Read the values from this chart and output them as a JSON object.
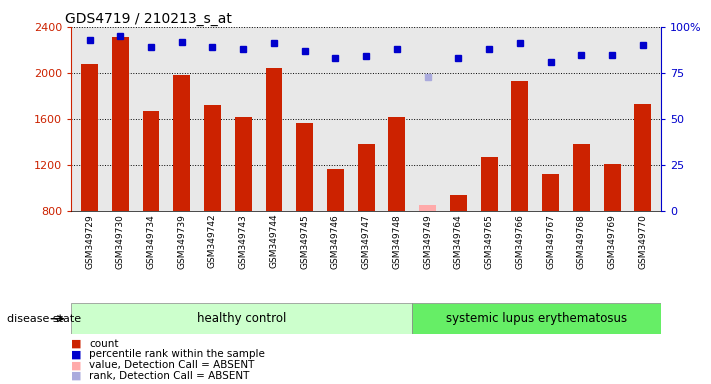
{
  "title": "GDS4719 / 210213_s_at",
  "samples": [
    "GSM349729",
    "GSM349730",
    "GSM349734",
    "GSM349739",
    "GSM349742",
    "GSM349743",
    "GSM349744",
    "GSM349745",
    "GSM349746",
    "GSM349747",
    "GSM349748",
    "GSM349749",
    "GSM349764",
    "GSM349765",
    "GSM349766",
    "GSM349767",
    "GSM349768",
    "GSM349769",
    "GSM349770"
  ],
  "bar_values": [
    2080,
    2310,
    1670,
    1980,
    1720,
    1620,
    2040,
    1565,
    1165,
    1380,
    1620,
    null,
    940,
    1270,
    1930,
    1120,
    1380,
    1210,
    1730
  ],
  "absent_bar_values": [
    null,
    null,
    null,
    null,
    null,
    null,
    null,
    null,
    null,
    null,
    null,
    855,
    null,
    null,
    null,
    null,
    null,
    null,
    null
  ],
  "percentile_values": [
    93,
    95,
    89,
    92,
    89,
    88,
    91,
    87,
    83,
    84,
    88,
    null,
    83,
    88,
    91,
    81,
    85,
    85,
    90
  ],
  "absent_percentile_values": [
    null,
    null,
    null,
    null,
    null,
    null,
    null,
    null,
    null,
    null,
    null,
    73,
    null,
    null,
    null,
    null,
    null,
    null,
    null
  ],
  "ylim": [
    800,
    2400
  ],
  "y_ticks": [
    800,
    1200,
    1600,
    2000,
    2400
  ],
  "right_ylim": [
    0,
    100
  ],
  "right_yticks": [
    0,
    25,
    50,
    75,
    100
  ],
  "right_yticklabels": [
    "0",
    "25",
    "50",
    "75",
    "100%"
  ],
  "bar_color": "#cc2200",
  "absent_bar_color": "#ffaaaa",
  "percentile_color": "#0000cc",
  "absent_percentile_color": "#aaaadd",
  "group1_label": "healthy control",
  "group1_count": 11,
  "group2_label": "systemic lupus erythematosus",
  "group2_count": 8,
  "group1_bg": "#ccffcc",
  "group2_bg": "#66ee66",
  "disease_state_label": "disease state",
  "legend_labels": [
    "count",
    "percentile rank within the sample",
    "value, Detection Call = ABSENT",
    "rank, Detection Call = ABSENT"
  ],
  "legend_colors": [
    "#cc2200",
    "#0000cc",
    "#ffaaaa",
    "#aaaadd"
  ],
  "background_color": "#ffffff",
  "plot_bg": "#e8e8e8"
}
